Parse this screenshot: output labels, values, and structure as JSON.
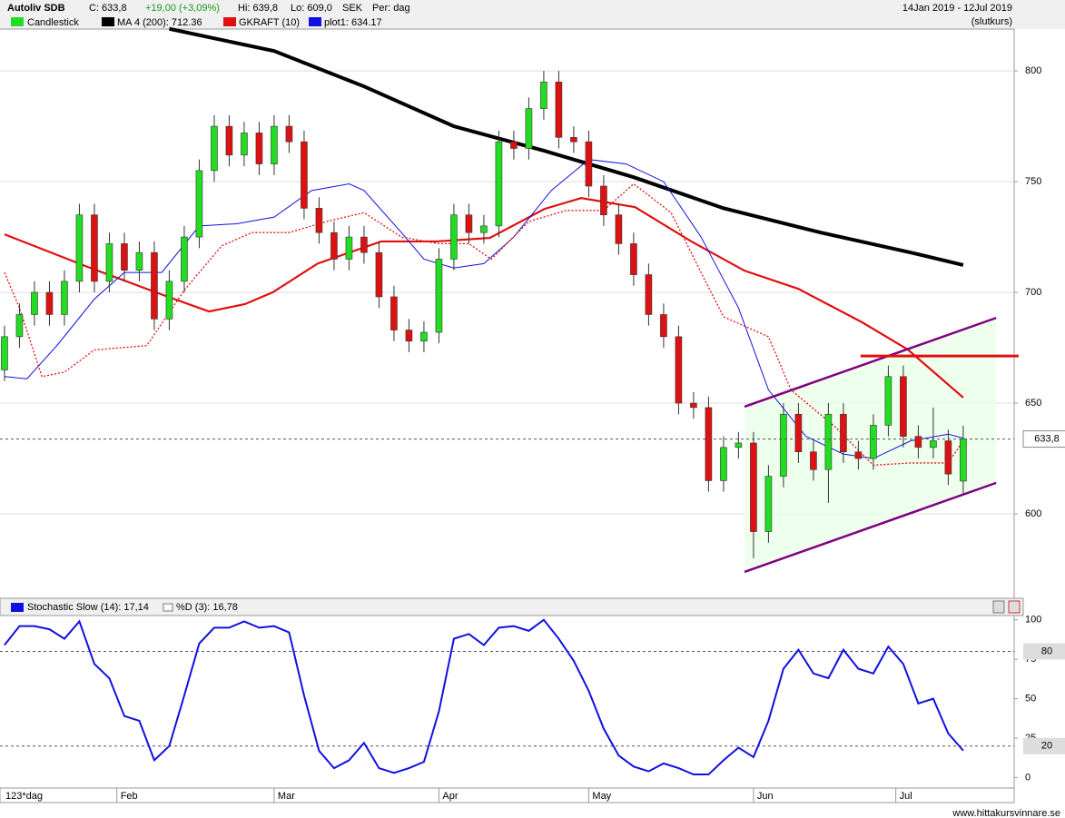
{
  "header": {
    "name": "Autoliv SDB",
    "close": "C: 633,8",
    "change": "+19,00 (+3,09%)",
    "high": "Hi: 639,8",
    "low": "Lo: 609,0",
    "currency": "SEK",
    "period": "Per: dag",
    "range": "14Jan 2019 - 12Jul 2019",
    "mode": "(slutkurs)",
    "candle_legend": "Candlestick",
    "x_label": "123*dag",
    "footer": "www.hittakursvinnare.se"
  },
  "chart_data": [
    {
      "type": "candlestick",
      "up_color": "#22dd22",
      "down_color": "#dd1111",
      "grid": true,
      "xlim": [
        -0.6,
        134.8
      ],
      "ylim": [
        562.3,
        818.9
      ],
      "yticks": [
        600,
        650,
        700,
        750,
        800
      ],
      "xticks": [
        {
          "value": 15,
          "label": "Feb"
        },
        {
          "value": 36,
          "label": "Mar"
        },
        {
          "value": 58,
          "label": "Apr"
        },
        {
          "value": 78,
          "label": "May"
        },
        {
          "value": 100,
          "label": "Jun"
        },
        {
          "value": 119,
          "label": "Jul"
        }
      ],
      "x": [
        0,
        2,
        4,
        6,
        8,
        10,
        12,
        14,
        16,
        18,
        20,
        22,
        24,
        26,
        28,
        30,
        32,
        34,
        36,
        38,
        40,
        42,
        44,
        46,
        48,
        50,
        52,
        54,
        56,
        58,
        60,
        62,
        64,
        66,
        68,
        70,
        72,
        74,
        76,
        78,
        80,
        82,
        84,
        86,
        88,
        90,
        92,
        94,
        96,
        98,
        100,
        102,
        104,
        106,
        108,
        110,
        112,
        114,
        116,
        118,
        120,
        122,
        124,
        126,
        128
      ],
      "open": [
        665,
        680,
        690,
        700,
        690,
        705,
        735,
        705,
        722,
        710,
        718,
        688,
        705,
        725,
        755,
        775,
        762,
        772,
        758,
        775,
        768,
        738,
        727,
        715,
        725,
        718,
        698,
        683,
        678,
        682,
        715,
        735,
        727,
        730,
        768,
        765,
        783,
        795,
        770,
        768,
        748,
        735,
        722,
        708,
        690,
        680,
        650,
        648,
        615,
        630,
        632,
        592,
        617,
        645,
        628,
        620,
        645,
        628,
        625,
        640,
        662,
        635,
        630,
        633,
        614.8
      ],
      "high": [
        685,
        695,
        705,
        705,
        710,
        740,
        740,
        727,
        727,
        723,
        723,
        710,
        730,
        760,
        780,
        780,
        777,
        777,
        780,
        780,
        773,
        743,
        732,
        730,
        730,
        723,
        703,
        688,
        687,
        720,
        740,
        740,
        735,
        773,
        773,
        788,
        800,
        800,
        775,
        773,
        753,
        740,
        727,
        713,
        695,
        685,
        655,
        653,
        635,
        637,
        637,
        622,
        650,
        650,
        633,
        650,
        650,
        633,
        645,
        667,
        667,
        640,
        648,
        638,
        639.8
      ],
      "low": [
        660,
        675,
        685,
        685,
        685,
        700,
        700,
        700,
        705,
        705,
        683,
        683,
        700,
        720,
        750,
        757,
        757,
        753,
        753,
        763,
        733,
        722,
        710,
        710,
        713,
        693,
        678,
        673,
        673,
        677,
        710,
        722,
        722,
        725,
        760,
        760,
        778,
        765,
        763,
        743,
        730,
        717,
        703,
        685,
        675,
        645,
        643,
        610,
        610,
        625,
        580,
        587,
        612,
        623,
        615,
        605,
        623,
        620,
        620,
        635,
        630,
        625,
        625,
        613,
        609
      ],
      "close": [
        680,
        690,
        700,
        690,
        705,
        735,
        705,
        722,
        710,
        718,
        688,
        705,
        725,
        755,
        775,
        762,
        772,
        758,
        775,
        768,
        738,
        727,
        715,
        725,
        718,
        698,
        683,
        678,
        682,
        715,
        735,
        727,
        730,
        768,
        765,
        783,
        795,
        770,
        768,
        748,
        735,
        722,
        708,
        690,
        680,
        650,
        648,
        615,
        630,
        632,
        592,
        617,
        645,
        628,
        620,
        645,
        628,
        625,
        640,
        662,
        635,
        630,
        633,
        618,
        633.8
      ],
      "last": {
        "value": 633.8,
        "label": "633,8"
      },
      "series": [
        {
          "name": "MA 4 (200): 712.36",
          "color": "#000000",
          "width": 4,
          "x": [
            22,
            36,
            48,
            60,
            72,
            84,
            96,
            109,
            121,
            128
          ],
          "values": [
            819,
            809,
            793,
            775,
            764,
            752,
            738,
            727,
            718,
            712.36
          ]
        },
        {
          "color": "#e01010",
          "width": 2.2,
          "x": [
            0,
            11.5,
            21.2,
            27.3,
            32.1,
            35.8,
            41.8,
            50.3,
            57.6,
            64.8,
            72.1,
            77,
            84.2,
            91.5,
            98.8,
            106,
            114.5,
            120.6,
            128
          ],
          "values": [
            726.2,
            711,
            698.8,
            691.4,
            694.7,
            700,
            713,
            723,
            723,
            724.6,
            737.7,
            742.6,
            738.5,
            723.4,
            709.8,
            701.6,
            686.5,
            674.2,
            652.5
          ]
        },
        {
          "name": "plot1: 634.17",
          "color": "#1010e0",
          "width": 1,
          "x": [
            0,
            3,
            7,
            12,
            16,
            21,
            26,
            31,
            36,
            41,
            46,
            48,
            53,
            56,
            60,
            64,
            68,
            73,
            78,
            83,
            88,
            93,
            98,
            102,
            107,
            112,
            116,
            121,
            126,
            128
          ],
          "values": [
            662,
            661,
            676,
            697,
            709,
            709,
            730,
            731,
            734,
            746,
            749,
            746,
            727,
            715,
            711,
            713,
            725,
            746,
            760,
            758,
            750,
            725,
            693,
            656,
            635,
            627,
            625,
            633,
            636,
            634.17
          ]
        },
        {
          "name": "GKRAFT (10)",
          "color": "#e01010",
          "width": 1.3,
          "dash": "2,2",
          "x": [
            0,
            2,
            5,
            8,
            12,
            19,
            24,
            29,
            33,
            38,
            43,
            48,
            53,
            58,
            62,
            65,
            70,
            75,
            80,
            84,
            89,
            93,
            96,
            102,
            105,
            111,
            116,
            121,
            126,
            128
          ],
          "values": [
            709,
            693,
            662,
            664,
            674,
            676,
            701,
            721,
            727,
            727,
            732,
            736,
            725,
            722,
            722,
            715,
            732,
            737,
            737,
            749,
            736,
            709,
            689,
            680,
            656,
            639,
            622,
            623,
            623,
            633
          ]
        }
      ],
      "annotations": [
        {
          "color": "#800080",
          "x": [
            98.8,
            132.4
          ],
          "y": [
            648.4,
            688.5
          ]
        },
        {
          "color": "#800080",
          "x": [
            98.8,
            132.4
          ],
          "y": [
            573.8,
            614
          ]
        },
        {
          "color": "#e01010",
          "x": [
            114.3,
            135.4
          ],
          "y": [
            671.3,
            671.3
          ]
        }
      ]
    },
    {
      "type": "line",
      "legend": "Stochastic Slow (14): 17,14",
      "legend2": "%D (3): 16,78",
      "color": "#1010e0",
      "xlim": [
        -0.6,
        134.8
      ],
      "ylim": [
        -6.6,
        102.7
      ],
      "yticks": [
        0,
        25,
        50,
        75,
        100
      ],
      "ref_lines": [
        80,
        20
      ],
      "x": [
        0,
        2,
        4,
        6,
        8,
        10,
        12,
        14,
        16,
        18,
        20,
        22,
        24,
        26,
        28,
        30,
        32,
        34,
        36,
        38,
        40,
        42,
        44,
        46,
        48,
        50,
        52,
        54,
        56,
        58,
        60,
        62,
        64,
        66,
        68,
        70,
        72,
        74,
        76,
        78,
        80,
        82,
        84,
        86,
        88,
        90,
        92,
        94,
        96,
        98,
        100,
        102,
        104,
        106,
        108,
        110,
        112,
        114,
        116,
        118,
        120,
        122,
        124,
        126,
        128
      ],
      "values": [
        84,
        96,
        96,
        94,
        88,
        99,
        72,
        63,
        39,
        36,
        11,
        20,
        52,
        85,
        95,
        95,
        99,
        95,
        96,
        92,
        52,
        17,
        6,
        11,
        22,
        6,
        3,
        6,
        10,
        42,
        88,
        91,
        84,
        95,
        96,
        93,
        100,
        88,
        74,
        55,
        31,
        14,
        7,
        4,
        9,
        6,
        2,
        2,
        11,
        19,
        13,
        36,
        69,
        81,
        66,
        63,
        81,
        69,
        66,
        83,
        72,
        47,
        50,
        28,
        17.14
      ]
    }
  ]
}
